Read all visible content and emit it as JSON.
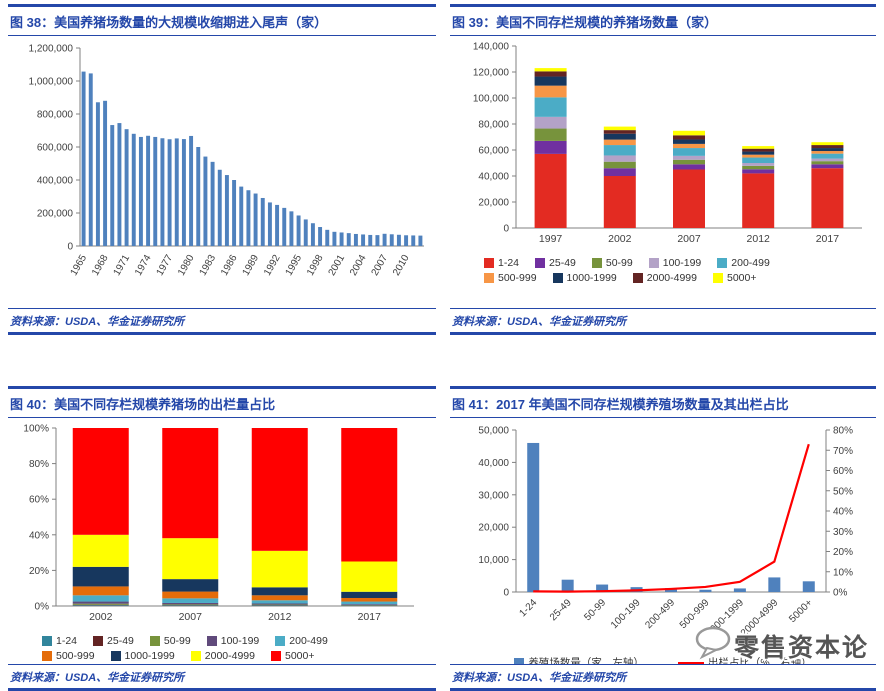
{
  "page": {
    "watermark_text": "零售资本论"
  },
  "source_label": "资料来源：USDA、华金证券研究所",
  "colors": {
    "accent_blue": "#2447A9",
    "bar_blue": "#4F81BD",
    "line_red": "#FF0000"
  },
  "chart_data": [
    {
      "id": "chart38",
      "type": "bar",
      "title": "图 38：美国养猪场数量的大规模收缩期进入尾声（家）",
      "x": [
        1965,
        1966,
        1967,
        1968,
        1969,
        1970,
        1971,
        1972,
        1973,
        1974,
        1975,
        1976,
        1977,
        1978,
        1979,
        1980,
        1981,
        1982,
        1983,
        1984,
        1985,
        1986,
        1987,
        1988,
        1989,
        1990,
        1991,
        1992,
        1993,
        1994,
        1995,
        1996,
        1997,
        1998,
        1999,
        2000,
        2001,
        2002,
        2003,
        2004,
        2005,
        2006,
        2007,
        2008,
        2009,
        2010,
        2011,
        2012
      ],
      "values": [
        1057000,
        1046000,
        871000,
        880000,
        733000,
        745000,
        708000,
        680000,
        661000,
        668000,
        661000,
        653000,
        647000,
        652000,
        648000,
        667000,
        600000,
        542000,
        510000,
        462000,
        430000,
        400000,
        360000,
        338000,
        318000,
        291000,
        264000,
        249000,
        231000,
        210000,
        185000,
        161000,
        138000,
        115000,
        98000,
        86000,
        82000,
        78000,
        73000,
        70000,
        67000,
        66000,
        74000,
        71000,
        68000,
        65000,
        64000,
        63000
      ],
      "ylim": [
        0,
        1200000
      ],
      "ytick": 200000,
      "xtick_every": 3,
      "bar_color": "#4F81BD",
      "grid": false,
      "legend_position": "none"
    },
    {
      "id": "chart39",
      "type": "stacked-bar",
      "title": "图 39：美国不同存栏规模的养猪场数量（家）",
      "categories": [
        "1997",
        "2002",
        "2007",
        "2012",
        "2017"
      ],
      "series": [
        {
          "name": "1-24",
          "color": "#E32B22",
          "values": [
            57000,
            40000,
            45000,
            42000,
            46000
          ]
        },
        {
          "name": "25-49",
          "color": "#7030A0",
          "values": [
            10000,
            6000,
            4000,
            3200,
            3000
          ]
        },
        {
          "name": "50-99",
          "color": "#77933C",
          "values": [
            9500,
            5000,
            3500,
            2600,
            2400
          ]
        },
        {
          "name": "100-199",
          "color": "#B3A2C7",
          "values": [
            9000,
            4800,
            3000,
            2200,
            2000
          ]
        },
        {
          "name": "200-499",
          "color": "#4BACC6",
          "values": [
            15000,
            8000,
            6000,
            4200,
            3800
          ]
        },
        {
          "name": "500-999",
          "color": "#F79646",
          "values": [
            9000,
            4200,
            3200,
            2200,
            2000
          ]
        },
        {
          "name": "1000-1999",
          "color": "#17375E",
          "values": [
            7000,
            4500,
            3400,
            2400,
            2300
          ]
        },
        {
          "name": "2000-4999",
          "color": "#632423",
          "values": [
            4000,
            2800,
            3200,
            2200,
            2300
          ]
        },
        {
          "name": "5000+",
          "color": "#FFFF00",
          "values": [
            2500,
            2700,
            3500,
            2000,
            2200
          ]
        }
      ],
      "ylim": [
        0,
        140000
      ],
      "ytick": 20000,
      "legend_rows": [
        [
          0,
          1,
          2,
          3,
          4
        ],
        [
          5,
          6,
          7,
          8
        ]
      ],
      "legend_position": "bottom"
    },
    {
      "id": "chart40",
      "type": "stacked-bar-percent",
      "title": "图 40：美国不同存栏规模养猪场的出栏量占比",
      "categories": [
        "2002",
        "2007",
        "2012",
        "2017"
      ],
      "series": [
        {
          "name": "1-24",
          "color": "#31859C",
          "values": [
            0.4,
            0.3,
            0.3,
            0.2
          ]
        },
        {
          "name": "25-49",
          "color": "#632423",
          "values": [
            0.3,
            0.2,
            0.2,
            0.1
          ]
        },
        {
          "name": "50-99",
          "color": "#77933C",
          "values": [
            0.6,
            0.4,
            0.3,
            0.2
          ]
        },
        {
          "name": "100-199",
          "color": "#604A7B",
          "values": [
            1.2,
            0.8,
            0.6,
            0.5
          ]
        },
        {
          "name": "200-499",
          "color": "#4BACC6",
          "values": [
            3.5,
            2.6,
            1.8,
            1.5
          ]
        },
        {
          "name": "500-999",
          "color": "#E46C0A",
          "values": [
            5.0,
            3.8,
            2.8,
            2.0
          ]
        },
        {
          "name": "1000-1999",
          "color": "#17375E",
          "values": [
            11.0,
            7.0,
            4.5,
            3.5
          ]
        },
        {
          "name": "2000-4999",
          "color": "#FFFF00",
          "values": [
            18.0,
            23.0,
            20.5,
            17.0
          ]
        },
        {
          "name": "5000+",
          "color": "#FF0000",
          "values": [
            60.0,
            61.9,
            69.0,
            75.0
          ]
        }
      ],
      "ylim": [
        0,
        100
      ],
      "ytick": 20,
      "legend_rows": [
        [
          0,
          1,
          2,
          3,
          4
        ],
        [
          5,
          6,
          7,
          8
        ]
      ],
      "legend_position": "bottom"
    },
    {
      "id": "chart41",
      "type": "combo",
      "title": "图 41：2017 年美国不同存栏规模养殖场数量及其出栏占比",
      "categories": [
        "1-24",
        "25-49",
        "50-99",
        "100-199",
        "200-499",
        "500-999",
        "1000-1999",
        "2000-4999",
        "5000+"
      ],
      "bar_series": {
        "name": "养殖场数量（家，左轴）",
        "color": "#4F81BD",
        "values": [
          46000,
          3800,
          2300,
          1500,
          1200,
          700,
          1100,
          4500,
          3300
        ]
      },
      "line_series": {
        "name": "出栏占比（%，右轴）",
        "color": "#FF0000",
        "values": [
          0.3,
          0.2,
          0.4,
          0.8,
          1.5,
          2.5,
          5.0,
          15.0,
          73.0
        ]
      },
      "left_ylim": [
        0,
        50000
      ],
      "left_ytick": 10000,
      "right_ylim": [
        0,
        80
      ],
      "right_ytick": 10,
      "legend_position": "bottom"
    }
  ]
}
